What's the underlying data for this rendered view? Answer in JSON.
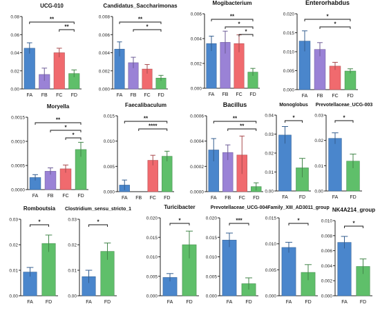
{
  "colors": {
    "FA": "#4a86cc",
    "FB": "#9a82d6",
    "FC": "#f06a6e",
    "FD": "#5fbf6a"
  },
  "chart_data": [
    {
      "type": "bar",
      "title": "UCG-010",
      "categories": [
        "FA",
        "FB",
        "FC",
        "FD"
      ],
      "values": [
        0.045,
        0.016,
        0.04,
        0.017
      ],
      "errors": [
        0.006,
        0.007,
        0.005,
        0.004
      ],
      "ylim": [
        0,
        0.08
      ],
      "yticks": [
        "0.00",
        "0.02",
        "0.04",
        "0.06",
        "0.08"
      ],
      "brackets": [
        {
          "from": "FA",
          "to": "FD",
          "label": "**"
        },
        {
          "from": "FC",
          "to": "FD",
          "label": "**"
        }
      ]
    },
    {
      "type": "bar",
      "title": "Candidatus_Saccharimonas",
      "categories": [
        "FA",
        "FB",
        "FC",
        "FD"
      ],
      "values": [
        0.0044,
        0.0029,
        0.0022,
        0.0012
      ],
      "errors": [
        0.0008,
        0.0006,
        0.0005,
        0.0003
      ],
      "ylim": [
        0,
        0.008
      ],
      "yticks": [
        "0.000",
        "0.002",
        "0.004",
        "0.006",
        "0.008"
      ],
      "brackets": [
        {
          "from": "FA",
          "to": "FD",
          "label": "**"
        },
        {
          "from": "FB",
          "to": "FD",
          "label": "*"
        }
      ]
    },
    {
      "type": "bar",
      "title": "Mogibacterium",
      "categories": [
        "FA",
        "FB",
        "FC",
        "FD"
      ],
      "values": [
        0.0036,
        0.0037,
        0.0036,
        0.0013
      ],
      "errors": [
        0.0006,
        0.0009,
        0.0007,
        0.0003
      ],
      "ylim": [
        0,
        0.006
      ],
      "yticks": [
        "0.000",
        "0.002",
        "0.004",
        "0.006"
      ],
      "brackets": [
        {
          "from": "FA",
          "to": "FD",
          "label": "**"
        },
        {
          "from": "FB",
          "to": "FD",
          "label": "*"
        },
        {
          "from": "FC",
          "to": "FD",
          "label": "*"
        }
      ]
    },
    {
      "type": "bar",
      "title": "Enterorhabdus",
      "categories": [
        "FA",
        "FB",
        "FC",
        "FD"
      ],
      "values": [
        0.0128,
        0.0106,
        0.0062,
        0.0049
      ],
      "errors": [
        0.0027,
        0.0018,
        0.001,
        0.0006
      ],
      "ylim": [
        0,
        0.02
      ],
      "yticks": [
        "0.000",
        "0.005",
        "0.010",
        "0.015",
        "0.020"
      ],
      "brackets": [
        {
          "from": "FA",
          "to": "FD",
          "label": "*"
        },
        {
          "from": "FB",
          "to": "FD",
          "label": "*"
        }
      ]
    },
    {
      "type": "bar",
      "title": "Moryella",
      "categories": [
        "FA",
        "FB",
        "FC",
        "FD"
      ],
      "values": [
        0.00025,
        0.00038,
        0.00043,
        0.00083
      ],
      "errors": [
        6e-05,
        7e-05,
        8e-05,
        0.00015
      ],
      "ylim": [
        0,
        0.0015
      ],
      "yticks": [
        "0.0000",
        "0.0005",
        "0.0010",
        "0.0015"
      ],
      "brackets": [
        {
          "from": "FA",
          "to": "FD",
          "label": "**"
        },
        {
          "from": "FB",
          "to": "FD",
          "label": "*"
        },
        {
          "from": "FC",
          "to": "FD",
          "label": "*"
        }
      ]
    },
    {
      "type": "bar",
      "title": "Faecalibaculum",
      "categories": [
        "FA",
        "FB",
        "FC",
        "FD"
      ],
      "values": [
        0.0013,
        0.0,
        0.0062,
        0.007
      ],
      "errors": [
        0.001,
        0.0,
        0.001,
        0.001
      ],
      "ylim": [
        0,
        0.015
      ],
      "yticks": [
        "0.000",
        "0.005",
        "0.010",
        "0.015"
      ],
      "brackets": [
        {
          "from": "FA",
          "to": "FD",
          "label": "**"
        },
        {
          "from": "FB",
          "to": "FD",
          "label": "****"
        }
      ]
    },
    {
      "type": "bar",
      "title": "Bacillus",
      "categories": [
        "FA",
        "FB",
        "FC",
        "FD"
      ],
      "values": [
        0.00033,
        0.00031,
        0.00029,
        4e-05
      ],
      "errors": [
        9e-05,
        6e-05,
        0.00015,
        3e-05
      ],
      "ylim": [
        0,
        0.0006
      ],
      "yticks": [
        "0.0000",
        "0.0002",
        "0.0004",
        "0.0006"
      ],
      "brackets": [
        {
          "from": "FA",
          "to": "FD",
          "label": "**"
        },
        {
          "from": "FB",
          "to": "FD",
          "label": "**"
        }
      ]
    },
    {
      "type": "bar",
      "title": "Monoglobus",
      "categories": [
        "FA",
        "FD"
      ],
      "values": [
        0.0295,
        0.0122
      ],
      "errors": [
        0.0045,
        0.005
      ],
      "ylim": [
        0,
        0.04
      ],
      "yticks": [
        "0.00",
        "0.01",
        "0.02",
        "0.03",
        "0.04"
      ],
      "brackets": [
        {
          "from": "FA",
          "to": "FD",
          "label": "*"
        }
      ]
    },
    {
      "type": "bar",
      "title": "Prevotellaceae_UCG-003",
      "categories": [
        "FA",
        "FD"
      ],
      "values": [
        0.0208,
        0.0118
      ],
      "errors": [
        0.0022,
        0.0028
      ],
      "ylim": [
        0,
        0.03
      ],
      "yticks": [
        "0.00",
        "0.01",
        "0.02",
        "0.03"
      ],
      "brackets": [
        {
          "from": "FA",
          "to": "FD",
          "label": "*"
        }
      ]
    },
    {
      "type": "bar",
      "title": "Romboutsia",
      "categories": [
        "FA",
        "FD"
      ],
      "values": [
        0.0093,
        0.0205
      ],
      "errors": [
        0.0018,
        0.0033
      ],
      "ylim": [
        0,
        0.03
      ],
      "yticks": [
        "0.00",
        "0.01",
        "0.02",
        "0.03"
      ],
      "brackets": [
        {
          "from": "FA",
          "to": "FD",
          "label": "*"
        }
      ]
    },
    {
      "type": "bar",
      "title": "Clostridium_sensu_stricto_1",
      "categories": [
        "FA",
        "FD"
      ],
      "values": [
        0.0075,
        0.0174
      ],
      "errors": [
        0.0025,
        0.0033
      ],
      "ylim": [
        0,
        0.03
      ],
      "yticks": [
        "0.00",
        "0.01",
        "0.02",
        "0.03"
      ],
      "brackets": [
        {
          "from": "FA",
          "to": "FD",
          "label": "*"
        }
      ]
    },
    {
      "type": "bar",
      "title": "Turicibacter",
      "categories": [
        "FA",
        "FD"
      ],
      "values": [
        0.0047,
        0.0131
      ],
      "errors": [
        0.001,
        0.0035
      ],
      "ylim": [
        0,
        0.02
      ],
      "yticks": [
        "0.000",
        "0.005",
        "0.010",
        "0.015",
        "0.020"
      ],
      "brackets": [
        {
          "from": "FA",
          "to": "FD",
          "label": "*"
        }
      ]
    },
    {
      "type": "bar",
      "title": "Prevotellaceae_UCG-004",
      "categories": [
        "FA",
        "FD"
      ],
      "values": [
        0.0143,
        0.0031
      ],
      "errors": [
        0.0018,
        0.0015
      ],
      "ylim": [
        0,
        0.02
      ],
      "yticks": [
        "0.000",
        "0.005",
        "0.010",
        "0.015",
        "0.020"
      ],
      "brackets": [
        {
          "from": "FA",
          "to": "FD",
          "label": "***"
        }
      ]
    },
    {
      "type": "bar",
      "title": "Family_XIII_AD3011_group",
      "categories": [
        "FA",
        "FD"
      ],
      "values": [
        0.0093,
        0.0045
      ],
      "errors": [
        0.001,
        0.0015
      ],
      "ylim": [
        0,
        0.015
      ],
      "yticks": [
        "0.000",
        "0.005",
        "0.010",
        "0.015"
      ],
      "brackets": [
        {
          "from": "FA",
          "to": "FD",
          "label": "*"
        }
      ]
    },
    {
      "type": "bar",
      "title": "NK4A214_group",
      "categories": [
        "FA",
        "FD"
      ],
      "values": [
        0.0071,
        0.0039
      ],
      "errors": [
        0.0008,
        0.001
      ],
      "ylim": [
        0,
        0.01
      ],
      "yticks": [
        "0.000",
        "0.002",
        "0.004",
        "0.006",
        "0.008",
        "0.010"
      ],
      "brackets": [
        {
          "from": "FA",
          "to": "FD",
          "label": "*"
        }
      ]
    }
  ]
}
